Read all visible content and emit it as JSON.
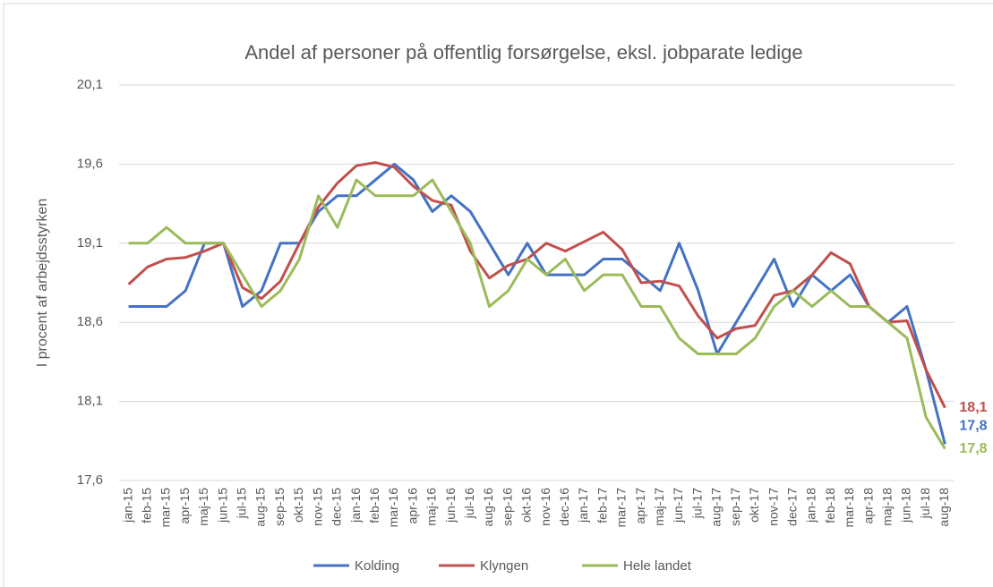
{
  "chart_data": {
    "type": "line",
    "title": "Andel af personer på offentlig forsørgelse, eksl. jobparate ledige",
    "y_label": "I procent af arbejdsstyrken",
    "categories": [
      "jan-15",
      "feb-15",
      "mar-15",
      "apr-15",
      "maj-15",
      "jun-15",
      "jul-15",
      "aug-15",
      "sep-15",
      "okt-15",
      "nov-15",
      "dec-15",
      "jan-16",
      "feb-16",
      "mar-16",
      "apr-16",
      "maj-16",
      "jun-16",
      "jul-16",
      "aug-16",
      "sep-16",
      "okt-16",
      "nov-16",
      "dec-16",
      "jan-17",
      "feb-17",
      "mar-17",
      "apr-17",
      "maj-17",
      "jun-17",
      "jul-17",
      "aug-17",
      "sep-17",
      "okt-17",
      "nov-17",
      "dec-17",
      "jan-18",
      "feb-18",
      "mar-18",
      "apr-18",
      "maj-18",
      "jun-18",
      "jul-18",
      "aug-18"
    ],
    "series": [
      {
        "name": "Kolding",
        "color": "#4472c4",
        "values": [
          18.7,
          18.7,
          18.7,
          18.8,
          19.1,
          19.1,
          18.7,
          18.8,
          19.1,
          19.1,
          19.3,
          19.4,
          19.4,
          19.5,
          19.6,
          19.5,
          19.3,
          19.4,
          19.3,
          19.1,
          18.9,
          19.1,
          18.9,
          18.9,
          18.9,
          19.0,
          19.0,
          18.9,
          18.8,
          19.1,
          18.8,
          18.4,
          18.6,
          18.8,
          19.0,
          18.7,
          18.9,
          18.8,
          18.9,
          18.7,
          18.6,
          18.7,
          18.3,
          17.83
        ],
        "value_labels": [
          null,
          null,
          null,
          null,
          null,
          null,
          null,
          null,
          null,
          null,
          null,
          null,
          null,
          null,
          null,
          null,
          null,
          null,
          null,
          null,
          null,
          null,
          null,
          null,
          null,
          null,
          null,
          null,
          null,
          null,
          null,
          null,
          null,
          null,
          null,
          null,
          null,
          null,
          null,
          null,
          null,
          null,
          null,
          "17,8"
        ]
      },
      {
        "name": "Klyngen",
        "color": "#c0504d",
        "values": [
          18.84,
          18.95,
          19.0,
          19.01,
          19.05,
          19.1,
          18.82,
          18.75,
          18.86,
          19.1,
          19.33,
          19.48,
          19.59,
          19.61,
          19.58,
          19.46,
          19.37,
          19.34,
          19.05,
          18.88,
          18.96,
          19.0,
          19.1,
          19.05,
          19.11,
          19.17,
          19.06,
          18.85,
          18.86,
          18.83,
          18.64,
          18.5,
          18.56,
          18.58,
          18.77,
          18.8,
          18.9,
          19.04,
          18.97,
          18.7,
          18.6,
          18.61,
          18.3,
          18.06
        ],
        "value_labels": [
          null,
          null,
          null,
          null,
          null,
          null,
          null,
          null,
          null,
          null,
          null,
          null,
          null,
          null,
          null,
          null,
          null,
          null,
          null,
          null,
          null,
          null,
          null,
          null,
          null,
          null,
          null,
          null,
          null,
          null,
          null,
          null,
          null,
          null,
          null,
          null,
          null,
          null,
          null,
          null,
          null,
          null,
          null,
          "18,1"
        ]
      },
      {
        "name": "Hele landet",
        "color": "#9bbb59",
        "values": [
          19.1,
          19.1,
          19.2,
          19.1,
          19.1,
          19.1,
          18.9,
          18.7,
          18.8,
          19.0,
          19.4,
          19.2,
          19.5,
          19.4,
          19.4,
          19.4,
          19.5,
          19.3,
          19.1,
          18.7,
          18.8,
          19.0,
          18.9,
          19.0,
          18.8,
          18.9,
          18.9,
          18.7,
          18.7,
          18.5,
          18.4,
          18.4,
          18.4,
          18.5,
          18.7,
          18.8,
          18.7,
          18.8,
          18.7,
          18.7,
          18.6,
          18.5,
          18.0,
          17.8
        ],
        "value_labels": [
          null,
          null,
          null,
          null,
          null,
          null,
          null,
          null,
          null,
          null,
          null,
          null,
          null,
          null,
          null,
          null,
          null,
          null,
          null,
          null,
          null,
          null,
          null,
          null,
          null,
          null,
          null,
          null,
          null,
          null,
          null,
          null,
          null,
          null,
          null,
          null,
          null,
          null,
          null,
          null,
          null,
          null,
          null,
          "17,8"
        ]
      }
    ],
    "ylim": [
      17.6,
      20.1
    ],
    "yticks": [
      {
        "value": 17.6,
        "label": "17,6"
      },
      {
        "value": 18.1,
        "label": "18,1"
      },
      {
        "value": 18.6,
        "label": "18,6"
      },
      {
        "value": 19.1,
        "label": "19,1"
      },
      {
        "value": 19.6,
        "label": "19,6"
      },
      {
        "value": 20.1,
        "label": "20,1"
      }
    ],
    "grid": true,
    "legend": "bottom"
  }
}
